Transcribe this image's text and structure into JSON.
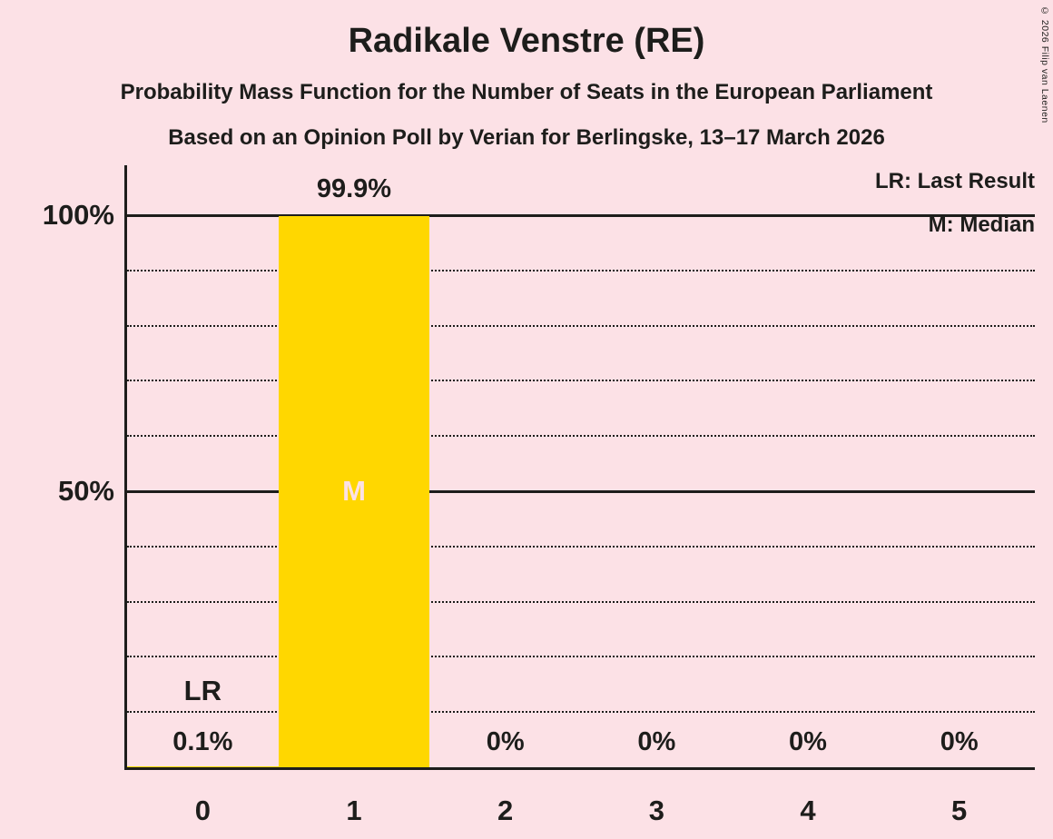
{
  "page": {
    "title": "Radikale Venstre (RE)",
    "subtitle1": "Probability Mass Function for the Number of Seats in the European Parliament",
    "subtitle2": "Based on an Opinion Poll by Verian for Berlingske, 13–17 March 2026",
    "copyright": "© 2026 Filip van Laenen"
  },
  "legend": {
    "lr": "LR: Last Result",
    "m": "M: Median"
  },
  "colors": {
    "background": "#fce1e6",
    "bar": "#ffd700",
    "text": "#1d1d1b",
    "median_label": "#fce1e6"
  },
  "chart_data": {
    "type": "bar",
    "title": "Radikale Venstre (RE)",
    "categories": [
      "0",
      "1",
      "2",
      "3",
      "4",
      "5"
    ],
    "values": [
      0.1,
      99.9,
      0,
      0,
      0,
      0
    ],
    "value_labels": [
      "0.1%",
      "99.9%",
      "0%",
      "0%",
      "0%",
      "0%"
    ],
    "ylim": [
      0,
      100
    ],
    "yticks": [
      {
        "value": 100,
        "label": "100%"
      },
      {
        "value": 50,
        "label": "50%"
      }
    ],
    "solid_gridlines": [
      50,
      100
    ],
    "dotted_gridlines": [
      10,
      20,
      30,
      40,
      60,
      70,
      80,
      90
    ],
    "median_index": 1,
    "median_marker": "M",
    "last_result_index": 0,
    "last_result_marker": "LR",
    "legend_position": "top-right",
    "grid": "horizontal-dotted"
  }
}
